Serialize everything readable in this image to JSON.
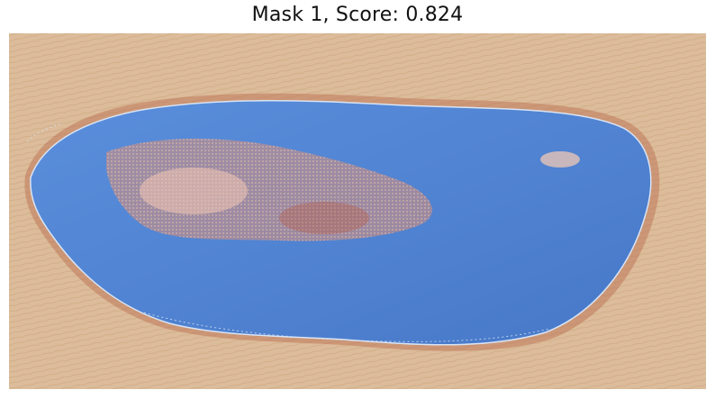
{
  "title": "Mask 1, Score: 0.824",
  "colors": {
    "skin": "#d9b896",
    "skin_dark": "#c9a47f",
    "wound_rim": "#b86a4e",
    "mask_fill": "#4f86d6",
    "mask_edge": "#d8e4f5",
    "wound_core": "#d98f7a"
  }
}
